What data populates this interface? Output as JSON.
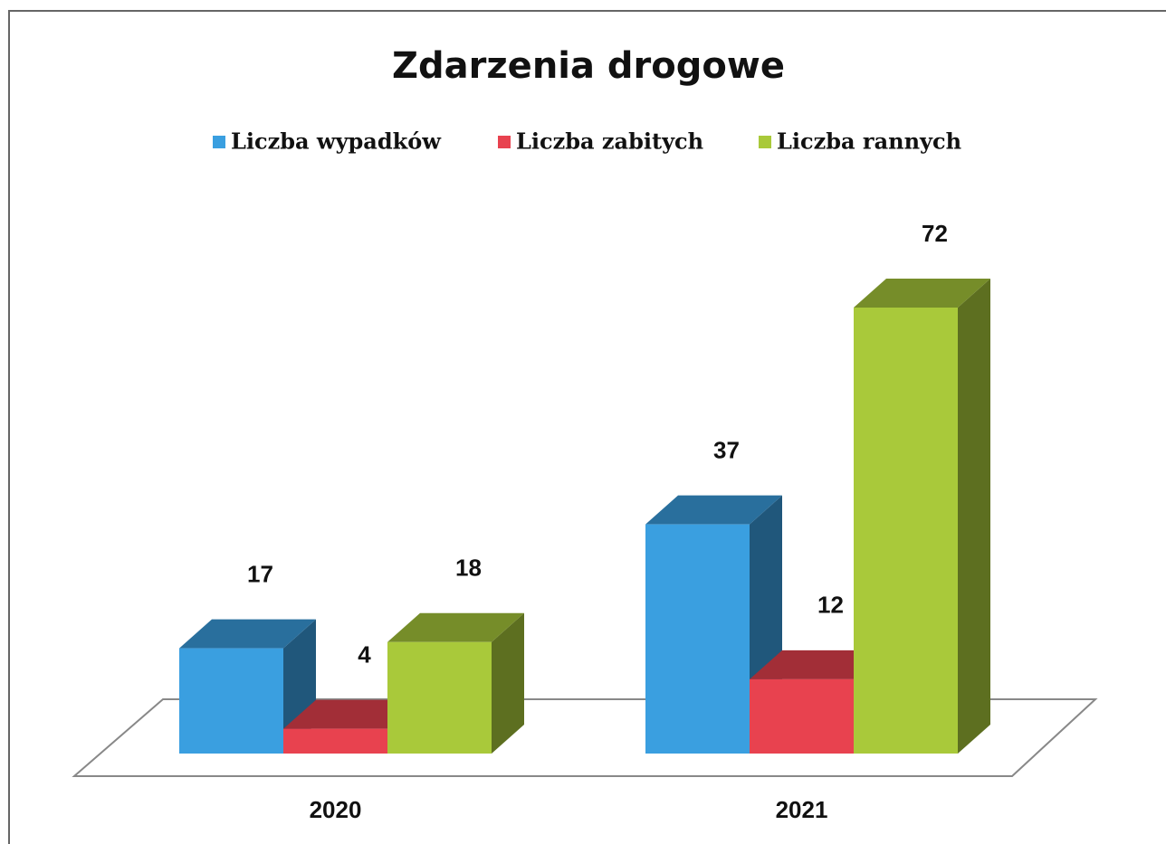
{
  "chart_data": {
    "type": "bar3d",
    "title": "Zdarzenia drogowe",
    "categories": [
      "2020",
      "2021"
    ],
    "series": [
      {
        "name": "Liczba wypadków",
        "color": "#3a9fe0",
        "values": [
          17,
          37
        ]
      },
      {
        "name": "Liczba zabitych",
        "color": "#e8424f",
        "values": [
          4,
          12
        ]
      },
      {
        "name": "Liczba rannych",
        "color": "#a9c93a",
        "values": [
          18,
          72
        ]
      }
    ],
    "legend": "top"
  }
}
